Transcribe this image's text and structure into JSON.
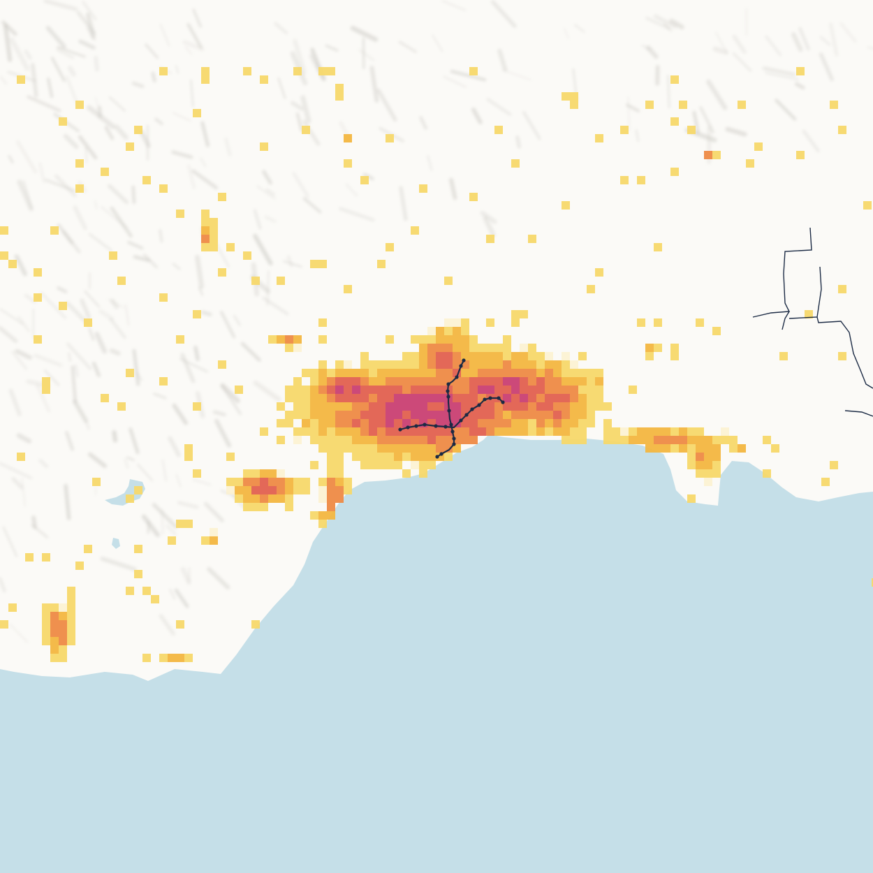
{
  "map": {
    "colors": {
      "sea": "#c5dfe8",
      "land": "#fbfaf7",
      "relief_shadow": "#9c9890",
      "metro_line": "#1b2a44",
      "density_scale": [
        "#fbf1cf",
        "#f7d86a",
        "#f3b640",
        "#ee8a45",
        "#e2604f",
        "#c93f72"
      ]
    },
    "layers": [
      "sea",
      "terrain-relief",
      "population-density-grid",
      "metro-lines",
      "rail-lines"
    ],
    "metro_stations_count_visible": 27
  }
}
